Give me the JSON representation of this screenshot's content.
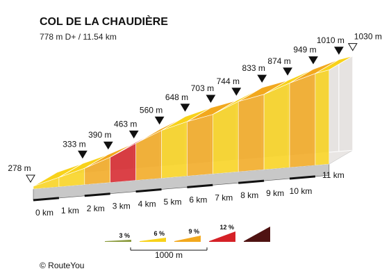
{
  "chart_data": {
    "type": "area",
    "title": "COL DE LA CHAUDIÈRE",
    "subtitle": "778 m D+ / 11.54 km",
    "points": [
      {
        "km": 0,
        "elevation": 278,
        "label": "278 m"
      },
      {
        "km": 1,
        "elevation": 333,
        "label": "333 m"
      },
      {
        "km": 2,
        "elevation": 390,
        "label": "390 m"
      },
      {
        "km": 3,
        "elevation": 463,
        "label": "463 m"
      },
      {
        "km": 4,
        "elevation": 560,
        "label": "560 m"
      },
      {
        "km": 5,
        "elevation": 648,
        "label": "648 m"
      },
      {
        "km": 6,
        "elevation": 703,
        "label": "703 m"
      },
      {
        "km": 7,
        "elevation": 744,
        "label": "744 m"
      },
      {
        "km": 8,
        "elevation": 833,
        "label": "833 m"
      },
      {
        "km": 9,
        "elevation": 874,
        "label": "874 m"
      },
      {
        "km": 10,
        "elevation": 949,
        "label": "949 m"
      },
      {
        "km": 11,
        "elevation": 1010,
        "label": "1010 m"
      },
      {
        "km": 11.54,
        "elevation": 1030,
        "label": "1030 m"
      }
    ],
    "km_labels": [
      "0 km",
      "1 km",
      "2 km",
      "3 km",
      "4 km",
      "5 km",
      "6 km",
      "7 km",
      "8 km",
      "9 km",
      "10 km",
      "11 km"
    ],
    "gradient_legend": [
      {
        "label": "3 %",
        "color": "#8a9a3c"
      },
      {
        "label": "6 %",
        "color": "#f8d21a"
      },
      {
        "label": "9 %",
        "color": "#f2a81d"
      },
      {
        "label": "12 %",
        "color": "#d52127"
      },
      {
        "label": "",
        "color": "#4f1312"
      }
    ],
    "segment_colors": [
      "#f8d21a",
      "#f8d21a",
      "#f2a81d",
      "#d52127",
      "#f2a81d",
      "#f8d21a",
      "#f2a81d",
      "#f8d21a",
      "#f2a81d",
      "#f8d21a",
      "#f2a81d",
      "#f8d21a"
    ],
    "scale_label": "1000 m",
    "start_marker": "open-triangle",
    "end_marker": "open-triangle"
  },
  "copyright": "©  RouteYou"
}
